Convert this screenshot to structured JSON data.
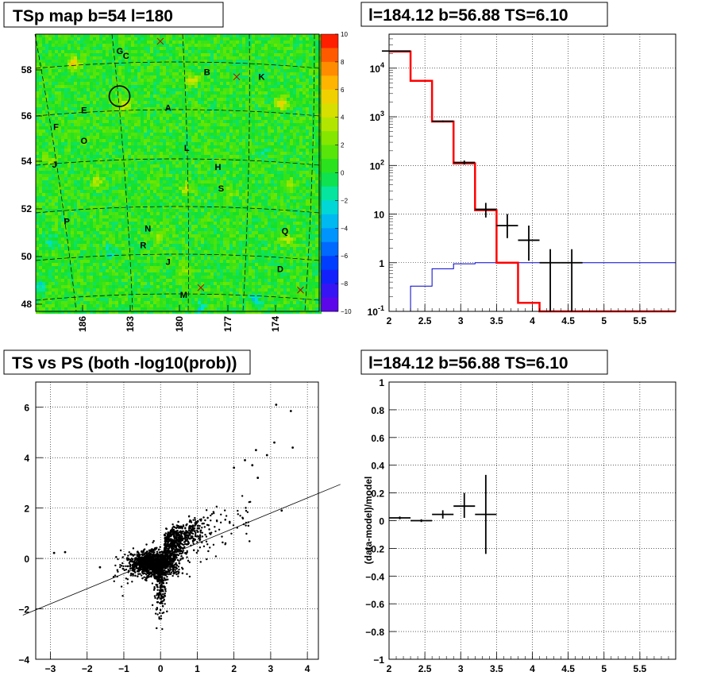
{
  "chart_data": [
    {
      "type": "heatmap",
      "title": "TSp map b=54 l=180",
      "x_ticks": [
        "186",
        "183",
        "180",
        "177",
        "174"
      ],
      "y_ticks": [
        "48",
        "50",
        "52",
        "54",
        "56",
        "58"
      ],
      "colorbar_ticks": [
        "10",
        "8",
        "6",
        "4",
        "2",
        "0",
        "−2",
        "−4",
        "−6",
        "−8",
        "−10"
      ],
      "zlim": [
        -10,
        10
      ],
      "sources": [
        {
          "name": "G",
          "l": 184.1,
          "b": 58.8
        },
        {
          "name": "C",
          "l": 183.7,
          "b": 58.6
        },
        {
          "name": "B",
          "l": 178.5,
          "b": 57.9
        },
        {
          "name": "K",
          "l": 175.0,
          "b": 57.7
        },
        {
          "name": "E",
          "l": 186.4,
          "b": 56.3
        },
        {
          "name": "A",
          "l": 181.0,
          "b": 56.4
        },
        {
          "name": "F",
          "l": 188.2,
          "b": 55.6
        },
        {
          "name": "O",
          "l": 186.4,
          "b": 55.0
        },
        {
          "name": "L",
          "l": 179.8,
          "b": 54.7
        },
        {
          "name": "J",
          "l": 188.3,
          "b": 54.0
        },
        {
          "name": "H",
          "l": 177.8,
          "b": 53.9
        },
        {
          "name": "S",
          "l": 177.6,
          "b": 53.0
        },
        {
          "name": "P",
          "l": 187.5,
          "b": 51.6
        },
        {
          "name": "N",
          "l": 182.3,
          "b": 51.3
        },
        {
          "name": "Q",
          "l": 173.5,
          "b": 51.2
        },
        {
          "name": "R",
          "l": 182.6,
          "b": 50.6
        },
        {
          "name": "J",
          "l": 181.0,
          "b": 49.9
        },
        {
          "name": "D",
          "l": 173.8,
          "b": 49.6
        },
        {
          "name": "M",
          "l": 180.0,
          "b": 48.5
        }
      ],
      "crosses": [
        {
          "l": 181.5,
          "b": 59.2
        },
        {
          "l": 176.6,
          "b": 57.7
        },
        {
          "l": 178.9,
          "b": 48.8
        },
        {
          "l": 172.5,
          "b": 48.7
        }
      ],
      "marked_position": {
        "l": 184.12,
        "b": 56.88
      }
    },
    {
      "type": "line",
      "title": "l=184.12 b=56.88 TS=6.10",
      "yscale": "log",
      "xlim": [
        2,
        6
      ],
      "ylim": [
        0.1,
        50000
      ],
      "x_ticks": [
        "2",
        "2.5",
        "3",
        "3.5",
        "4",
        "4.5",
        "5",
        "5.5"
      ],
      "y_ticks": [
        "10^{-1}",
        "1",
        "10",
        "10^{2}",
        "10^{3}",
        "10^{4}"
      ],
      "series": [
        {
          "style": "red-model-step",
          "color": "#ff0000",
          "bins": [
            [
              2.0,
              2.3,
              22000
            ],
            [
              2.3,
              2.6,
              5500
            ],
            [
              2.6,
              2.9,
              800
            ],
            [
              2.9,
              3.2,
              110
            ],
            [
              3.2,
              3.5,
              12
            ],
            [
              3.5,
              3.8,
              1.0
            ],
            [
              3.8,
              4.1,
              0.15
            ],
            [
              4.1,
              4.4,
              0.1
            ],
            [
              4.4,
              6.0,
              0.1
            ]
          ]
        },
        {
          "style": "blue-background-step",
          "color": "#0000cc",
          "bins": [
            [
              2.0,
              2.3,
              0.1
            ],
            [
              2.3,
              2.6,
              0.33
            ],
            [
              2.6,
              2.9,
              0.75
            ],
            [
              2.9,
              3.2,
              0.95
            ],
            [
              3.2,
              6.0,
              1.0
            ]
          ]
        },
        {
          "style": "black-data-points",
          "color": "#000000",
          "points": [
            {
              "x": 2.1,
              "xerr": 0.2,
              "y": 22500,
              "ylo": 22300,
              "yhi": 22700
            },
            {
              "x": 2.75,
              "xerr": 0.15,
              "y": 810,
              "ylo": 780,
              "yhi": 840
            },
            {
              "x": 3.05,
              "xerr": 0.15,
              "y": 115,
              "ylo": 104,
              "yhi": 126
            },
            {
              "x": 3.35,
              "xerr": 0.15,
              "y": 12.5,
              "ylo": 8.5,
              "yhi": 17
            },
            {
              "x": 3.65,
              "xerr": 0.15,
              "y": 5.8,
              "ylo": 3.2,
              "yhi": 10
            },
            {
              "x": 3.95,
              "xerr": 0.15,
              "y": 2.9,
              "ylo": 1.1,
              "yhi": 5.8
            },
            {
              "x": 4.25,
              "xerr": 0.15,
              "y": 1.0,
              "ylo": 0.1,
              "yhi": 1.9
            },
            {
              "x": 4.55,
              "xerr": 0.15,
              "y": 1.0,
              "ylo": 0.1,
              "yhi": 1.9
            }
          ]
        }
      ]
    },
    {
      "type": "scatter",
      "title": "TS vs PS (both -log10(prob))",
      "xlim": [
        -3.4,
        4.3
      ],
      "ylim": [
        -4,
        7
      ],
      "x_ticks": [
        "−3",
        "−2",
        "−1",
        "0",
        "1",
        "2",
        "3",
        "4"
      ],
      "y_ticks": [
        "−4",
        "−2",
        "0",
        "2",
        "4",
        "6"
      ],
      "reference_line": {
        "slope": 1.0,
        "intercept": 0.0
      },
      "outliers": [
        {
          "x": -2.9,
          "y": 0.22
        },
        {
          "x": -2.6,
          "y": 0.25
        },
        {
          "x": -1.65,
          "y": -0.35
        },
        {
          "x": 2.3,
          "y": 3.9
        },
        {
          "x": 2.5,
          "y": 3.7
        },
        {
          "x": 2.6,
          "y": 4.3
        },
        {
          "x": 2.65,
          "y": 3.2
        },
        {
          "x": 3.1,
          "y": 4.6
        },
        {
          "x": 3.15,
          "y": 6.1
        },
        {
          "x": 3.55,
          "y": 5.85
        },
        {
          "x": 3.6,
          "y": 4.4
        },
        {
          "x": 3.3,
          "y": 1.9
        },
        {
          "x": 2.0,
          "y": 3.6
        },
        {
          "x": 2.9,
          "y": 4.1
        }
      ],
      "cloud": {
        "center": [
          0,
          -0.2
        ],
        "core_x_range": [
          -1.8,
          2.6
        ],
        "core_y_range": [
          -3.3,
          3.3
        ]
      }
    },
    {
      "type": "scatter",
      "title": "l=184.12 b=56.88 TS=6.10",
      "ylabel": "(data-model)/model",
      "xlim": [
        2,
        6
      ],
      "ylim": [
        -1,
        1
      ],
      "x_ticks": [
        "2",
        "2.5",
        "3",
        "3.5",
        "4",
        "4.5",
        "5",
        "5.5"
      ],
      "y_ticks": [
        "1",
        "0.8",
        "0.6",
        "0.4",
        "0.2",
        "0",
        "−0.2",
        "−0.4",
        "−0.6",
        "−0.8",
        "−1"
      ],
      "points": [
        {
          "x": 2.15,
          "xerr": 0.15,
          "y": 0.02,
          "ylo": 0.01,
          "yhi": 0.03
        },
        {
          "x": 2.45,
          "xerr": 0.15,
          "y": 0.0,
          "ylo": -0.01,
          "yhi": 0.01
        },
        {
          "x": 2.75,
          "xerr": 0.15,
          "y": 0.045,
          "ylo": 0.015,
          "yhi": 0.075
        },
        {
          "x": 3.05,
          "xerr": 0.15,
          "y": 0.105,
          "ylo": 0.02,
          "yhi": 0.2
        },
        {
          "x": 3.35,
          "xerr": 0.15,
          "y": 0.045,
          "ylo": -0.24,
          "yhi": 0.33
        }
      ]
    }
  ]
}
